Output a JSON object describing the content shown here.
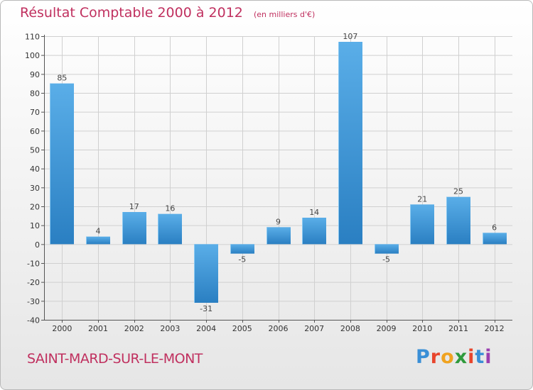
{
  "chart_data": {
    "type": "bar",
    "title": "Résultat Comptable 2000 à 2012",
    "subtitle": "(en milliers d'€)",
    "categories": [
      "2000",
      "2001",
      "2002",
      "2003",
      "2004",
      "2005",
      "2006",
      "2007",
      "2008",
      "2009",
      "2010",
      "2011",
      "2012"
    ],
    "values": [
      85,
      4,
      17,
      16,
      -31,
      -5,
      9,
      14,
      107,
      -5,
      21,
      25,
      6
    ],
    "ylim": [
      -40,
      110
    ],
    "yticks": [
      110,
      100,
      90,
      80,
      70,
      60,
      50,
      40,
      30,
      20,
      10,
      0,
      -10,
      -20,
      -30,
      -40
    ],
    "xlabel": "",
    "ylabel": "",
    "grid": true
  },
  "footer": {
    "commune": "SAINT-MARD-SUR-LE-MONT",
    "logo_letters": [
      "P",
      "r",
      "o",
      "x",
      "i",
      "t",
      "i"
    ],
    "logo_colors": [
      "#3a8fd6",
      "#e8452c",
      "#f0a320",
      "#2f9a3c",
      "#e8452c",
      "#3a8fd6",
      "#9b3fb0"
    ]
  },
  "colors": {
    "bar_top": "#5aaee8",
    "bar_bottom": "#2a7fc2",
    "grid": "#d0d0d0",
    "axis": "#555555"
  }
}
